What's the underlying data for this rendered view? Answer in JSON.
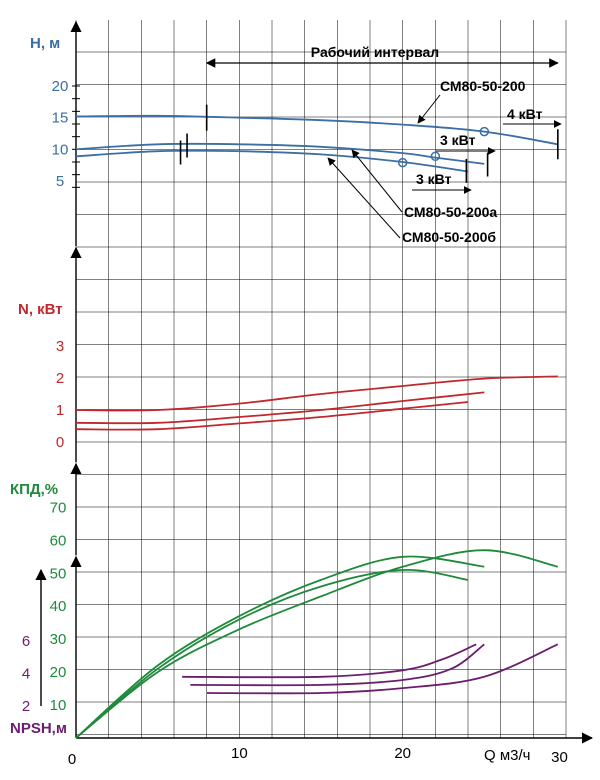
{
  "colors": {
    "head": "#3a6ea5",
    "power": "#c0282d",
    "eff": "#1e8a3a",
    "npsh": "#6b1d6e",
    "grid": "#000000"
  },
  "chart_data": {
    "type": "line",
    "title": "Рабочий интервал",
    "x_axis": {
      "label": "Q м3/ч",
      "range": [
        0,
        30
      ],
      "ticks": [
        "0",
        "10",
        "20",
        "30"
      ]
    },
    "panels": [
      {
        "name": "head",
        "axis_label": "H, м",
        "ticks": [
          "5",
          "10",
          "15",
          "20"
        ],
        "series": [
          {
            "name": "СМ80-50-200",
            "x": [
              0,
              5,
              10,
              15,
              20,
              25,
              29.5
            ],
            "y": [
              15.2,
              15.3,
              15,
              14.6,
              13.9,
              12.8,
              10.8
            ]
          },
          {
            "name": "СМ80-50-200а",
            "x": [
              0,
              5,
              10,
              15,
              20,
              22,
              25
            ],
            "y": [
              10,
              10.8,
              10.8,
              10.4,
              9.4,
              8.7,
              7.7
            ]
          },
          {
            "name": "СМ80-50-200б",
            "x": [
              0,
              5,
              10,
              15,
              20,
              24
            ],
            "y": [
              8.9,
              9.7,
              9.7,
              9.2,
              8,
              6.5
            ]
          }
        ],
        "annotations": [
          "4 кВт",
          "3 кВт",
          "3 кВт"
        ]
      },
      {
        "name": "power",
        "axis_label": "N, кВт",
        "ticks": [
          "0",
          "1",
          "2",
          "3"
        ],
        "series": [
          {
            "name": "СМ80-50-200",
            "x": [
              0,
              5,
              10,
              15,
              20,
              25,
              29.5
            ],
            "y": [
              1,
              1,
              1.2,
              1.5,
              1.75,
              1.98,
              2.05
            ]
          },
          {
            "name": "СМ80-50-200а",
            "x": [
              0,
              5,
              10,
              15,
              20,
              25
            ],
            "y": [
              0.6,
              0.6,
              0.78,
              1,
              1.28,
              1.55
            ]
          },
          {
            "name": "СМ80-50-200б",
            "x": [
              0,
              5,
              10,
              15,
              20,
              24
            ],
            "y": [
              0.4,
              0.4,
              0.58,
              0.78,
              1.04,
              1.25
            ]
          }
        ]
      },
      {
        "name": "efficiency",
        "axis_label": "КПД,%",
        "ticks": [
          "10",
          "20",
          "30",
          "40",
          "50",
          "60",
          "70"
        ],
        "series": [
          {
            "name": "СМ80-50-200",
            "x": [
              0,
              5,
              10,
              15,
              20,
              25,
              29.5
            ],
            "y": [
              0,
              20,
              33,
              43,
              52,
              57,
              52
            ]
          },
          {
            "name": "СМ80-50-200а",
            "x": [
              0,
              5,
              10,
              15,
              20,
              25
            ],
            "y": [
              0,
              22,
              37,
              48,
              55,
              52
            ]
          },
          {
            "name": "СМ80-50-200б",
            "x": [
              0,
              5,
              10,
              15,
              20,
              24
            ],
            "y": [
              0,
              21,
              36,
              46,
              51,
              48
            ]
          }
        ]
      },
      {
        "name": "npsh",
        "axis_label": "NPSH,м",
        "ticks": [
          "2",
          "4",
          "6"
        ],
        "series": [
          {
            "name": "СМ80-50-200",
            "x": [
              8,
              15,
              20,
              25,
              29.5
            ],
            "y": [
              2.8,
              2.8,
              3.1,
              3.8,
              5.8
            ]
          },
          {
            "name": "СМ80-50-200а",
            "x": [
              7,
              15,
              20,
              23,
              25
            ],
            "y": [
              3.3,
              3.3,
              3.6,
              4.3,
              5.8
            ]
          },
          {
            "name": "СМ80-50-200б",
            "x": [
              6.5,
              15,
              20,
              22.5,
              24.5
            ],
            "y": [
              3.8,
              3.8,
              4.2,
              4.9,
              5.8
            ]
          }
        ]
      }
    ]
  }
}
